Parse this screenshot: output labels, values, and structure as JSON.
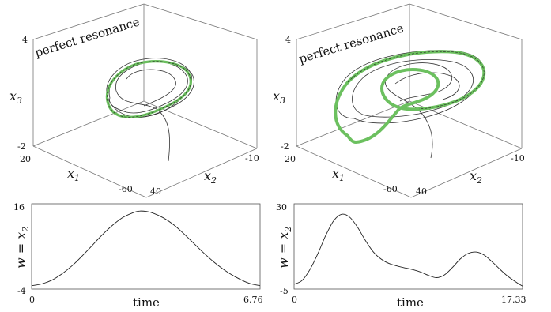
{
  "chart_data": [
    {
      "type": "line3d",
      "title": "perfect resonance",
      "axes": {
        "x1": {
          "label": "x",
          "sub": "1",
          "ticks": [
            "20",
            "-60"
          ],
          "range": [
            20,
            -60
          ]
        },
        "x2": {
          "label": "x",
          "sub": "2",
          "ticks": [
            "40",
            "-10"
          ],
          "range": [
            40,
            -10
          ]
        },
        "x3": {
          "label": "x",
          "sub": "3",
          "ticks": [
            "4",
            "-2"
          ],
          "range": [
            -2,
            4
          ]
        }
      },
      "series": [
        {
          "style": "thin black",
          "description": ""
        },
        {
          "style": "thick green"
        }
      ],
      "grid": false
    },
    {
      "type": "line3d",
      "title": "perfect resonance",
      "axes": {
        "x1": {
          "label": "x",
          "sub": "1",
          "ticks": [
            "20",
            "-60"
          ],
          "range": [
            20,
            -60
          ]
        },
        "x2": {
          "label": "x",
          "sub": "2",
          "ticks": [
            "40",
            "-10"
          ],
          "range": [
            40,
            -10
          ]
        },
        "x3": {
          "label": "x",
          "sub": "3",
          "ticks": [
            "4",
            "-2"
          ],
          "range": [
            -2,
            4
          ]
        }
      },
      "series": [
        {
          "style": "thin black"
        },
        {
          "style": "thick green"
        }
      ],
      "grid": false
    },
    {
      "type": "line",
      "xlabel": "time",
      "ylabel": "w = x",
      "ylabel_sub": "2",
      "x_ticks": [
        "0",
        "6.76"
      ],
      "y_ticks": [
        "16",
        "-4"
      ],
      "xlim": [
        0,
        6.76
      ],
      "ylim": [
        -4,
        16
      ],
      "x": [
        0,
        0.3,
        0.6,
        0.9,
        1.2,
        1.5,
        1.8,
        2.1,
        2.4,
        2.7,
        3.0,
        3.2,
        3.4,
        3.6,
        3.9,
        4.2,
        4.5,
        4.8,
        5.1,
        5.4,
        5.7,
        6.0,
        6.3,
        6.5,
        6.76
      ],
      "y": [
        -3.2,
        -2.8,
        -1.9,
        -0.4,
        1.5,
        3.8,
        6.3,
        8.8,
        11.0,
        12.8,
        13.9,
        14.3,
        14.2,
        13.8,
        12.7,
        11.1,
        9.0,
        6.7,
        4.4,
        2.3,
        0.5,
        -1.0,
        -2.2,
        -2.8,
        -3.2
      ]
    },
    {
      "type": "line",
      "xlabel": "time",
      "ylabel": "w = x",
      "ylabel_sub": "2",
      "x_ticks": [
        "0",
        "17.33"
      ],
      "y_ticks": [
        "30",
        "-5"
      ],
      "xlim": [
        0,
        17.33
      ],
      "ylim": [
        -5,
        30
      ],
      "x": [
        0,
        0.6,
        1.2,
        1.8,
        2.4,
        3.0,
        3.6,
        4.2,
        4.8,
        5.4,
        6.0,
        6.6,
        7.2,
        7.8,
        8.4,
        9.0,
        9.6,
        10.2,
        10.8,
        11.4,
        12.0,
        12.6,
        13.2,
        13.8,
        14.4,
        15.0,
        15.6,
        16.2,
        16.8,
        17.33
      ],
      "y": [
        -3.0,
        -1.5,
        3.0,
        9.5,
        17.0,
        23.0,
        25.7,
        24.6,
        20.5,
        15.0,
        10.3,
        7.3,
        5.5,
        4.5,
        3.7,
        3.0,
        2.0,
        0.6,
        -0.3,
        0.8,
        3.8,
        7.3,
        9.6,
        10.2,
        9.0,
        6.3,
        3.2,
        0.3,
        -2.0,
        -3.8
      ]
    }
  ]
}
